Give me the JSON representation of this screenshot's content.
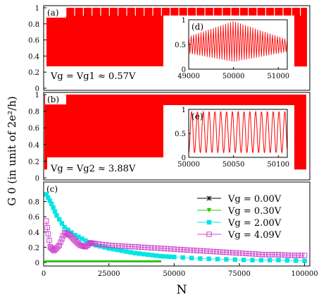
{
  "figure": {
    "ylabel": "G 0 (in unit of 2e²/h)",
    "xlabel": "N"
  },
  "colors": {
    "red": "#ff0000",
    "black": "#000000",
    "green": "#22cc00",
    "cyan": "#00e5e5",
    "magenta": "#cc44cc"
  },
  "chart_data": [
    {
      "panel": "a",
      "type": "line",
      "label": "(a)",
      "annotation": "Vg = Vg1 ≈ 0.57V",
      "ylim": [
        0,
        1
      ],
      "yticks": [
        "0",
        "0.2",
        "0.4",
        "0.6",
        "0.8",
        "1"
      ],
      "description_series": {
        "name": "G0 oscillation",
        "band_min": 0.27,
        "band_max": 1.0,
        "dips": 30
      }
    },
    {
      "panel": "d",
      "type": "line",
      "label": "(d)",
      "inset_of": "a",
      "xlim": [
        49000,
        51200
      ],
      "xticks": [
        "49000",
        "50000",
        "51000"
      ],
      "ylim": [
        0,
        1
      ],
      "yticks": [
        "0",
        "0.5",
        "1"
      ],
      "envelope": {
        "x": [
          49000,
          50000,
          51200
        ],
        "min": [
          0.3,
          0.1,
          0.3
        ],
        "max": [
          0.75,
          0.97,
          0.75
        ]
      }
    },
    {
      "panel": "b",
      "type": "line",
      "label": "(b)",
      "annotation": "Vg = Vg2 ≈ 3.88V",
      "ylim": [
        0,
        1
      ],
      "yticks": [
        "0",
        "0.2",
        "0.4",
        "0.6",
        "0.8",
        "1"
      ],
      "description_series": {
        "band_min": 0.1,
        "band_max": 1.0
      }
    },
    {
      "panel": "e",
      "type": "line",
      "label": "(e)",
      "inset_of": "b",
      "xlim": [
        50000,
        50110
      ],
      "xticks": [
        "50000",
        "50050",
        "50100"
      ],
      "ylim": [
        0,
        1
      ],
      "yticks": [
        "0",
        "0.5",
        "1"
      ],
      "period": 6.5,
      "min": 0.1,
      "max": 0.95
    },
    {
      "panel": "c",
      "type": "scatter",
      "label": "(c)",
      "xlim": [
        0,
        102000
      ],
      "xticks": [
        "0",
        "25000",
        "50000",
        "75000",
        "100000"
      ],
      "ylim": [
        0,
        1
      ],
      "yticks": [
        "0",
        "0.2",
        "0.4",
        "0.6",
        "0.8"
      ],
      "legend_position": "top-right",
      "series": [
        {
          "name": "Vg = 0.00V",
          "marker": "star",
          "color": "#000000",
          "x": [
            0,
            20000,
            40000
          ],
          "y": [
            0.02,
            0.02,
            0.02
          ]
        },
        {
          "name": "Vg = 0.30V",
          "marker": "triangle-down",
          "color": "#22cc00",
          "x": [
            0,
            20000,
            40000
          ],
          "y": [
            0.02,
            0.02,
            0.02
          ]
        },
        {
          "name": "Vg = 2.00V",
          "marker": "square",
          "color": "#00e5e5",
          "x": [
            1000,
            3000,
            5000,
            8000,
            12000,
            16000,
            20000,
            25000,
            30000,
            35000,
            40000,
            45000,
            50000,
            60000,
            70000,
            80000,
            90000,
            100000
          ],
          "y": [
            0.87,
            0.75,
            0.6,
            0.45,
            0.35,
            0.28,
            0.22,
            0.18,
            0.15,
            0.12,
            0.1,
            0.08,
            0.07,
            0.05,
            0.04,
            0.03,
            0.03,
            0.02
          ]
        },
        {
          "name": "Vg = 4.09V",
          "marker": "square-open",
          "color": "#cc44cc",
          "x": [
            1000,
            2500,
            4000,
            6000,
            8000,
            10000,
            12000,
            14000,
            16000,
            18000,
            20000,
            25000,
            30000,
            35000,
            40000,
            45000,
            50000,
            55000,
            60000,
            65000,
            70000,
            75000,
            80000,
            85000,
            90000,
            95000,
            100000
          ],
          "y": [
            0.53,
            0.2,
            0.15,
            0.22,
            0.38,
            0.35,
            0.28,
            0.22,
            0.2,
            0.25,
            0.24,
            0.22,
            0.21,
            0.2,
            0.19,
            0.18,
            0.17,
            0.16,
            0.15,
            0.14,
            0.13,
            0.12,
            0.11,
            0.1,
            0.1,
            0.09,
            0.09
          ]
        }
      ]
    }
  ]
}
